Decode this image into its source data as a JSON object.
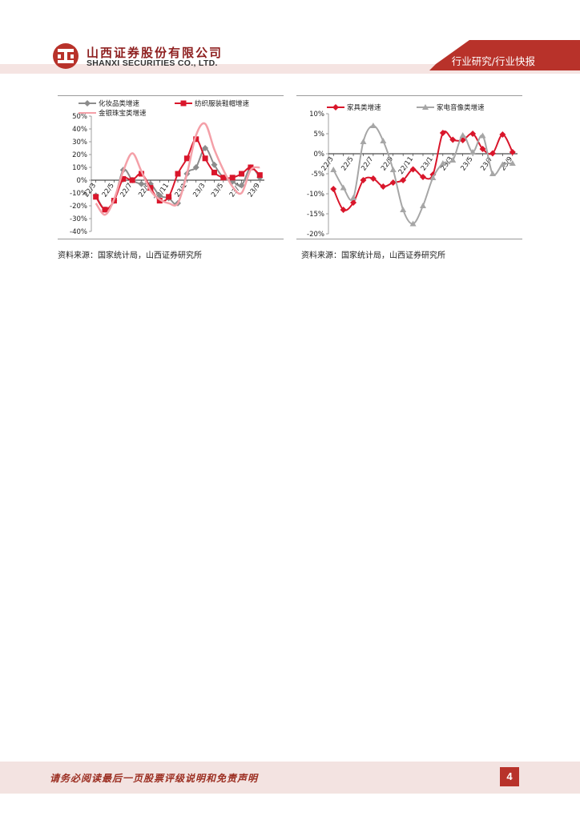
{
  "header": {
    "company_cn": "山西证券股份有限公司",
    "company_en": "SHANXI SECURITIES CO., LTD.",
    "section": "行业研究/行业快报",
    "brand_color": "#b8322a"
  },
  "left_source": "资料来源：国家统计局，山西证券研究所",
  "right_source": "资料来源：国家统计局，山西证券研究所",
  "footer": {
    "disclaimer": "请务必阅读最后一页股票评级说明和免责声明",
    "page": "4"
  },
  "chart_data": [
    {
      "type": "line",
      "categories": [
        "22/3",
        "22/4",
        "22/5",
        "22/6",
        "22/7",
        "22/8",
        "22/9",
        "22/10",
        "22/11",
        "22/12",
        "23/1",
        "23/2",
        "23/3",
        "23/4",
        "23/5",
        "23/6",
        "23/7",
        "23/8",
        "23/9"
      ],
      "tick_labels": [
        "22/3",
        "22/5",
        "22/7",
        "22/9",
        "22/11",
        "23/1",
        "23/3",
        "23/5",
        "23/7",
        "23/9"
      ],
      "ylim": [
        -40,
        50
      ],
      "yticks": [
        "50%",
        "40%",
        "30%",
        "20%",
        "10%",
        "0%",
        "-10%",
        "-20%",
        "-30%",
        "-40%"
      ],
      "legend_position": "top",
      "series": [
        {
          "name": "化妆品类增速",
          "color": "#8c8c8c",
          "marker": "diamond",
          "values": [
            -12,
            -23,
            -16,
            8,
            0,
            -3,
            -3,
            -12,
            -14,
            -18,
            5,
            10,
            25,
            12,
            2,
            -1,
            -4,
            10,
            2
          ]
        },
        {
          "name": "纺织服装鞋帽增速",
          "color": "#d9162b",
          "marker": "square",
          "values": [
            -13,
            -23,
            -16,
            1,
            0,
            5,
            -6,
            -16,
            -13,
            5,
            17,
            32,
            17,
            6,
            2,
            2,
            5,
            10,
            4
          ]
        },
        {
          "name": "金银珠宝类增速",
          "color": "#f4a0a8",
          "marker": "none",
          "values": [
            -18,
            -27,
            -15,
            7,
            21,
            7,
            -8,
            -15,
            -18,
            -18,
            5,
            35,
            44,
            24,
            8,
            -5,
            -10,
            8,
            10
          ]
        }
      ]
    },
    {
      "type": "line",
      "categories": [
        "22/3",
        "22/4",
        "22/5",
        "22/6",
        "22/7",
        "22/8",
        "22/9",
        "22/10",
        "22/11",
        "22/12",
        "23/1",
        "23/2",
        "23/3",
        "23/4",
        "23/5",
        "23/6",
        "23/7",
        "23/8",
        "23/9"
      ],
      "tick_labels": [
        "22/3",
        "22/5",
        "22/7",
        "22/9",
        "22/11",
        "23/1",
        "23/3",
        "23/5",
        "23/7",
        "23/9"
      ],
      "ylim": [
        -20,
        10
      ],
      "yticks": [
        "10%",
        "5%",
        "0%",
        "-5%",
        "-10%",
        "-15%",
        "-20%"
      ],
      "legend_position": "top",
      "series": [
        {
          "name": "家具类增速",
          "color": "#d9162b",
          "marker": "diamond",
          "values": [
            -8.8,
            -14,
            -12.2,
            -6.6,
            -6.2,
            -8.2,
            -7.2,
            -6.6,
            -3.9,
            -5.8,
            -5.2,
            5.2,
            3.5,
            3.4,
            5.0,
            1.2,
            0.1,
            4.8,
            0.4
          ]
        },
        {
          "name": "家电音像类增速",
          "color": "#a6a6a6",
          "marker": "triangle",
          "values": [
            -4,
            -8.5,
            -11,
            3,
            7,
            3.2,
            -4,
            -14,
            -17.5,
            -13,
            -6,
            -2.4,
            -1.6,
            4.6,
            0.4,
            4.5,
            -5,
            -2.7,
            -2.4
          ]
        }
      ]
    }
  ]
}
